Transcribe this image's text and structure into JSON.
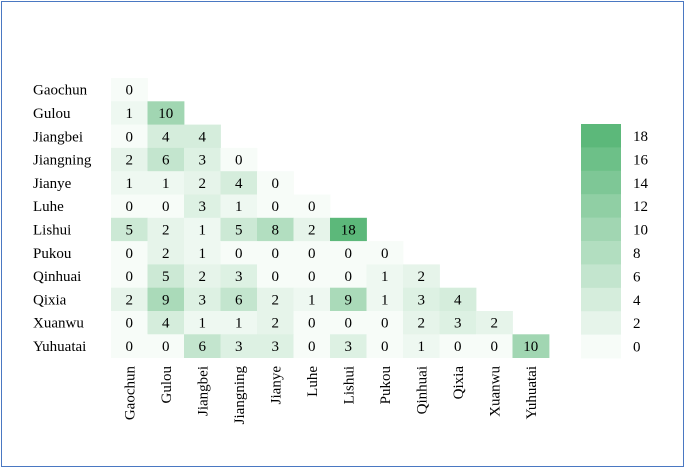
{
  "chart_data": {
    "type": "heatmap",
    "labels": [
      "Gaochun",
      "Gulou",
      "Jiangbei",
      "Jiangning",
      "Jianye",
      "Luhe",
      "Lishui",
      "Pukou",
      "Qinhuai",
      "Qixia",
      "Xuanwu",
      "Yuhuatai"
    ],
    "matrix": [
      [
        0
      ],
      [
        1,
        10
      ],
      [
        0,
        4,
        4
      ],
      [
        2,
        6,
        3,
        0
      ],
      [
        1,
        1,
        2,
        4,
        0
      ],
      [
        0,
        0,
        3,
        1,
        0,
        0
      ],
      [
        5,
        2,
        1,
        5,
        8,
        2,
        18
      ],
      [
        0,
        2,
        1,
        0,
        0,
        0,
        0,
        0
      ],
      [
        0,
        5,
        2,
        3,
        0,
        0,
        0,
        1,
        2
      ],
      [
        2,
        9,
        3,
        6,
        2,
        1,
        9,
        1,
        3,
        4
      ],
      [
        0,
        4,
        1,
        1,
        2,
        0,
        0,
        0,
        2,
        3,
        2
      ],
      [
        0,
        0,
        6,
        3,
        3,
        0,
        3,
        0,
        1,
        0,
        0,
        10
      ]
    ],
    "colorbar": {
      "min": 0,
      "max": 18,
      "ticks": [
        18,
        16,
        14,
        12,
        10,
        8,
        6,
        4,
        2,
        0
      ],
      "color_low": "#f7fcf8",
      "color_high": "#5cb87a"
    },
    "triangle": "lower"
  }
}
